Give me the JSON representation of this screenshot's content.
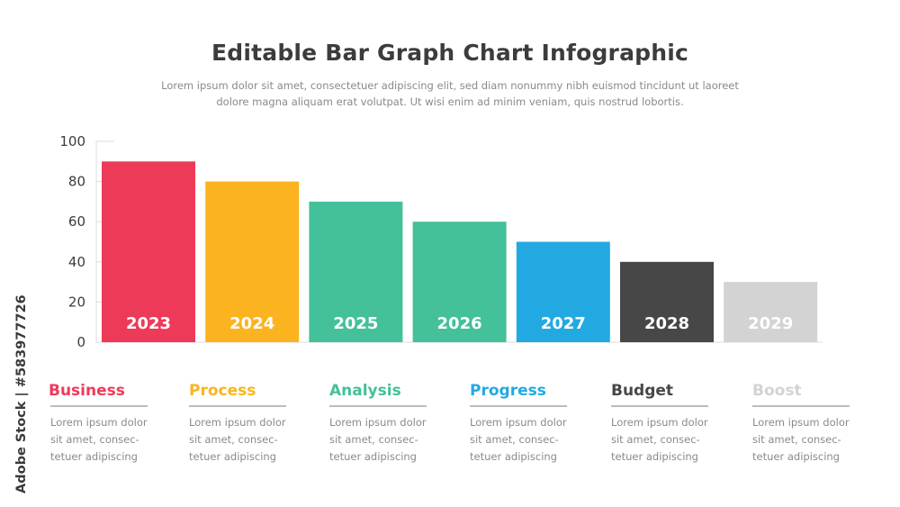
{
  "header": {
    "title": "Editable Bar Graph Chart Infographic",
    "subtitle_lines": [
      "Lorem ipsum dolor sit amet, consectetuer adipiscing elit, sed diam nonummy nibh euismod tincidunt ut laoreet",
      "dolore magna aliquam erat volutpat. Ut wisi enim ad minim veniam, quis nostrud  lobortis."
    ]
  },
  "chart_data": {
    "type": "bar",
    "title": "",
    "xlabel": "",
    "ylabel": "",
    "categories": [
      "2023",
      "2024",
      "2025",
      "2026",
      "2027",
      "2028",
      "2029"
    ],
    "values": [
      90,
      80,
      70,
      60,
      50,
      40,
      30
    ],
    "colors": [
      "#ee3a59",
      "#fbb41f",
      "#44c09a",
      "#44c09a",
      "#23a9e1",
      "#474747",
      "#d3d3d3"
    ],
    "ylim": [
      0,
      100
    ],
    "yticks": [
      0,
      20,
      40,
      60,
      80,
      100
    ],
    "grid": false,
    "legend": "none"
  },
  "categories_panel": [
    {
      "title": "Business",
      "color": "#ee3a59",
      "desc": [
        "Lorem ipsum dolor",
        "sit amet, consec-",
        "tetuer adipiscing"
      ]
    },
    {
      "title": "Process",
      "color": "#fbb41f",
      "desc": [
        "Lorem ipsum dolor",
        "sit amet, consec-",
        "tetuer adipiscing"
      ]
    },
    {
      "title": "Analysis",
      "color": "#44c09a",
      "desc": [
        "Lorem ipsum dolor",
        "sit amet, consec-",
        "tetuer adipiscing"
      ]
    },
    {
      "title": "Progress",
      "color": "#23a9e1",
      "desc": [
        "Lorem ipsum dolor",
        "sit amet, consec-",
        "tetuer adipiscing"
      ]
    },
    {
      "title": "Budget",
      "color": "#474747",
      "desc": [
        "Lorem ipsum dolor",
        "sit amet, consec-",
        "tetuer adipiscing"
      ]
    },
    {
      "title": "Boost",
      "color": "#d3d3d3",
      "desc": [
        "Lorem ipsum dolor",
        "sit amet, consec-",
        "tetuer adipiscing"
      ]
    }
  ],
  "watermark": "Adobe Stock | #583977726"
}
